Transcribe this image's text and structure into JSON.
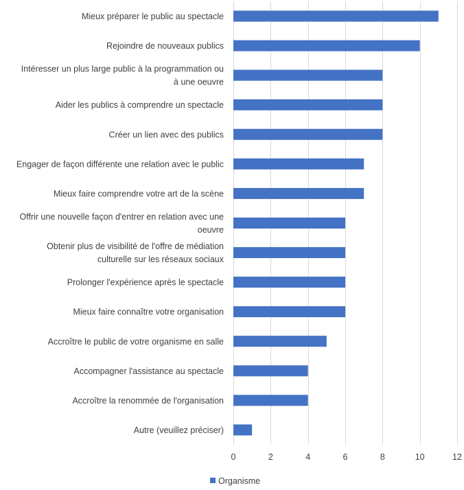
{
  "chart_data": {
    "type": "bar",
    "orientation": "horizontal",
    "categories": [
      [
        "Mieux préparer le public au spectacle"
      ],
      [
        "Rejoindre de nouveaux publics"
      ],
      [
        "Intéresser un plus large public à la programmation ou",
        "à une oeuvre"
      ],
      [
        "Aider les publics à comprendre un spectacle"
      ],
      [
        "Créer un lien avec des publics"
      ],
      [
        "Engager de façon différente une relation avec le public"
      ],
      [
        "Mieux faire comprendre votre art de la scène"
      ],
      [
        "Offrir une nouvelle façon d'entrer en relation avec une",
        "oeuvre"
      ],
      [
        "Obtenir plus de visibilité de l'offre de médiation",
        "culturelle sur les réseaux sociaux"
      ],
      [
        "Prolonger l'expérience après le spectacle"
      ],
      [
        "Mieux faire connaître votre organisation"
      ],
      [
        "Accroître le public de votre organisme en salle"
      ],
      [
        "Accompagner l'assistance au spectacle"
      ],
      [
        "Accroître la renommée de l'organisation"
      ],
      [
        "Autre (veuillez préciser)"
      ]
    ],
    "series": [
      {
        "name": "Organisme",
        "color": "#4472c4",
        "values": [
          11,
          10,
          8,
          8,
          8,
          7,
          7,
          6,
          6,
          6,
          6,
          5,
          4,
          4,
          1
        ]
      }
    ],
    "xlim": [
      0,
      12
    ],
    "xticks": [
      "0",
      "2",
      "4",
      "6",
      "8",
      "10",
      "12"
    ],
    "xtick_values": [
      0,
      2,
      4,
      6,
      8,
      10,
      12
    ],
    "grid": "vertical",
    "legend_position": "bottom-left",
    "title": "",
    "xlabel": "",
    "ylabel": ""
  }
}
